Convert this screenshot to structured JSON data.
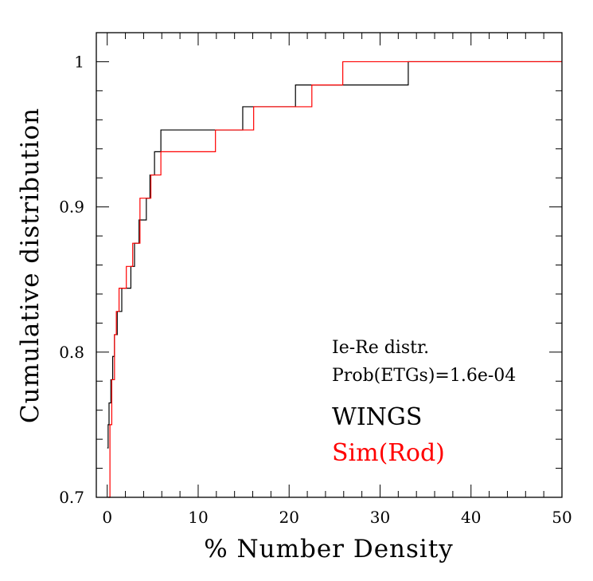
{
  "chart_data": {
    "type": "line",
    "step": true,
    "xlabel": "% Number Density",
    "ylabel": "Cumulative distribution",
    "xlim": [
      -1.2,
      50
    ],
    "ylim": [
      0.7,
      1.02
    ],
    "xticks": [
      0,
      10,
      20,
      30,
      40,
      50
    ],
    "xtick_labels": [
      "0",
      "10",
      "20",
      "30",
      "40",
      "50"
    ],
    "yticks": [
      0.7,
      0.8,
      0.9,
      1.0
    ],
    "ytick_labels": [
      "0.7",
      "0.8",
      "0.9",
      "1"
    ],
    "annotations": [
      "Ie-Re distr.",
      "Prob(ETGs)=1.6e-04"
    ],
    "series": [
      {
        "name": "WINGS",
        "color": "#000000",
        "x": [
          0.0,
          0.1,
          0.2,
          0.4,
          0.6,
          0.8,
          1.1,
          1.6,
          2.2,
          2.6,
          3.0,
          3.5,
          4.3,
          4.7,
          5.2,
          5.9,
          14.9,
          16.2,
          20.7,
          22.2,
          33.1,
          50.0
        ],
        "y": [
          0.734,
          0.75,
          0.765,
          0.781,
          0.797,
          0.812,
          0.828,
          0.844,
          0.844,
          0.859,
          0.875,
          0.891,
          0.906,
          0.922,
          0.938,
          0.953,
          0.969,
          0.969,
          0.984,
          0.984,
          1.0,
          1.0
        ]
      },
      {
        "name": "Sim(Rod)",
        "color": "#ff0000",
        "x": [
          0.1,
          0.3,
          0.5,
          0.8,
          1.0,
          1.3,
          2.1,
          2.8,
          3.6,
          4.8,
          5.3,
          5.9,
          11.9,
          16.1,
          22.5,
          25.9,
          50.0
        ],
        "y": [
          0.7,
          0.75,
          0.781,
          0.812,
          0.828,
          0.844,
          0.859,
          0.875,
          0.906,
          0.922,
          0.922,
          0.938,
          0.953,
          0.969,
          0.984,
          1.0,
          1.0
        ]
      }
    ]
  }
}
